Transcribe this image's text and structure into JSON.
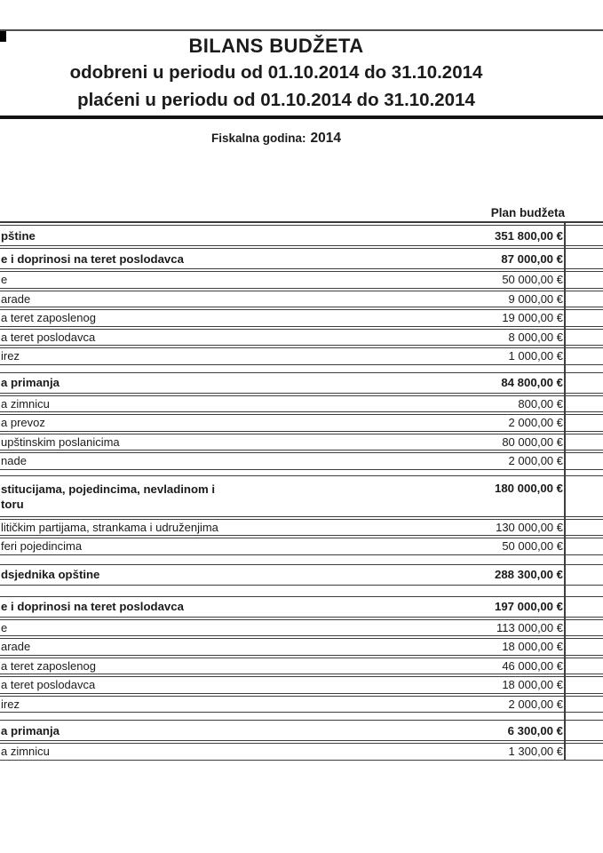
{
  "header": {
    "title": "BILANS BUDŽETA",
    "subtitle_approved": "odobreni u periodu od 01.10.2014 do 31.10.2014",
    "subtitle_paid": "plaćeni u periodu od 01.10.2014 do 31.10.2014",
    "fiscal_year_label": "Fiskalna godina:",
    "fiscal_year_value": "2014"
  },
  "table": {
    "column_header": "Plan budžeta",
    "currency": "€",
    "rows": [
      {
        "label": "pštine",
        "value": "351 800,00 €",
        "bold": true,
        "gap": "first"
      },
      {
        "label": "e i doprinosi na teret poslodavca",
        "value": "87 000,00 €",
        "bold": true,
        "gap": "s"
      },
      {
        "label": "e",
        "value": "50 000,00 €",
        "bold": false,
        "gap": "s"
      },
      {
        "label": "arade",
        "value": "9 000,00 €",
        "bold": false,
        "gap": "s"
      },
      {
        "label": "a teret zaposlenog",
        "value": "19 000,00 €",
        "bold": false,
        "gap": "s"
      },
      {
        "label": "a teret poslodavca",
        "value": "8 000,00 €",
        "bold": false,
        "gap": "s"
      },
      {
        "label": "irez",
        "value": "1 000,00 €",
        "bold": false,
        "gap": "s"
      },
      {
        "label": "a primanja",
        "value": "84 800,00 €",
        "bold": true,
        "gap": "m"
      },
      {
        "label": "a zimnicu",
        "value": "800,00 €",
        "bold": false,
        "gap": "s"
      },
      {
        "label": "a prevoz",
        "value": "2 000,00 €",
        "bold": false,
        "gap": "s"
      },
      {
        "label": "upštinskim poslanicima",
        "value": "80 000,00 €",
        "bold": false,
        "gap": "s"
      },
      {
        "label": "nade",
        "value": "2 000,00 €",
        "bold": false,
        "gap": "s"
      },
      {
        "label": [
          "stitucijama, pojedincima, nevladinom i",
          "toru"
        ],
        "value": "180 000,00 €",
        "bold": true,
        "gap": "m2"
      },
      {
        "label": "litičkim partijama, strankama i udruženjima",
        "value": "130 000,00 €",
        "bold": false,
        "gap": "s"
      },
      {
        "label": "feri pojedincima",
        "value": "50 000,00 €",
        "bold": false,
        "gap": "s"
      },
      {
        "label": "dsjednika opštine",
        "value": "288 300,00 €",
        "bold": true,
        "gap": "l"
      },
      {
        "label": "e i doprinosi na teret poslodavca",
        "value": "197 000,00 €",
        "bold": true,
        "gap": "xl"
      },
      {
        "label": "e",
        "value": "113 000,00 €",
        "bold": false,
        "gap": "s"
      },
      {
        "label": "arade",
        "value": "18 000,00 €",
        "bold": false,
        "gap": "s"
      },
      {
        "label": "a teret zaposlenog",
        "value": "46 000,00 €",
        "bold": false,
        "gap": "s"
      },
      {
        "label": "a teret poslodavca",
        "value": "18 000,00 €",
        "bold": false,
        "gap": "s"
      },
      {
        "label": "irez",
        "value": "2 000,00 €",
        "bold": false,
        "gap": "s"
      },
      {
        "label": "a primanja",
        "value": "6 300,00 €",
        "bold": true,
        "gap": "m"
      },
      {
        "label": "a zimnicu",
        "value": "1 300,00 €",
        "bold": false,
        "gap": "s"
      }
    ]
  }
}
